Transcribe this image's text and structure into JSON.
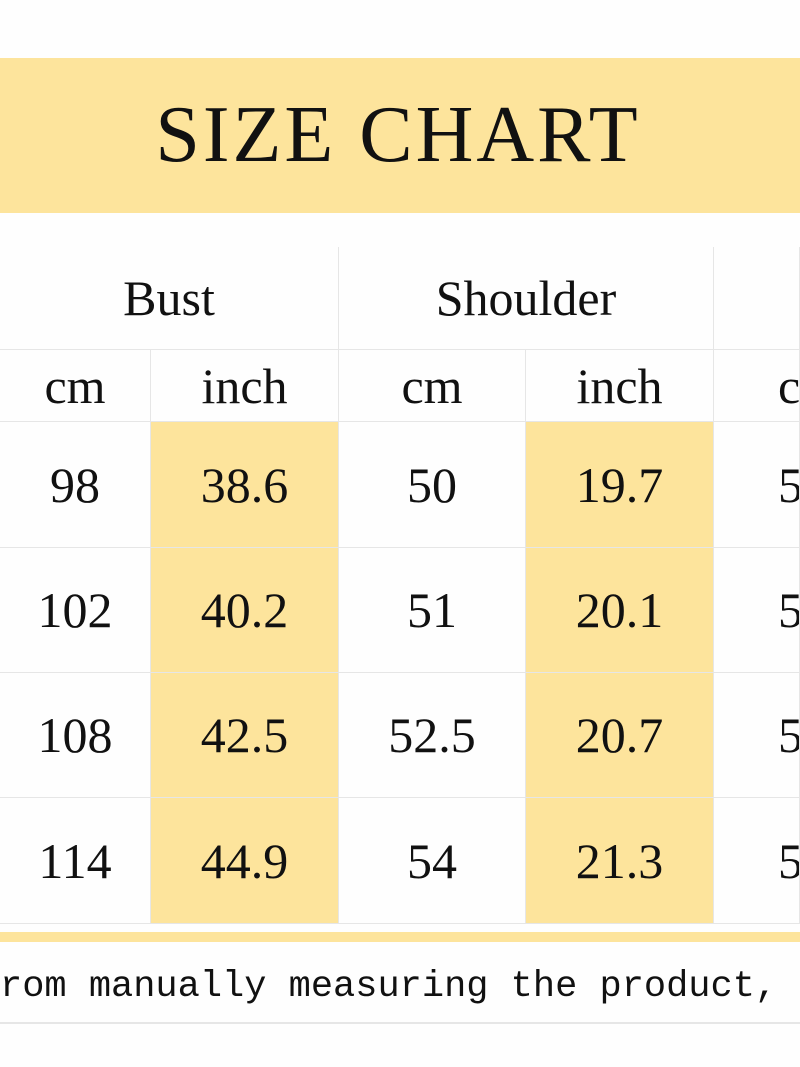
{
  "title": "SIZE CHART",
  "groups": [
    "Bust",
    "Shoulder",
    ""
  ],
  "units": [
    "cm",
    "inch",
    "cm",
    "inch",
    "c"
  ],
  "rows": [
    [
      "98",
      "38.6",
      "50",
      "19.7",
      "5"
    ],
    [
      "102",
      "40.2",
      "51",
      "20.1",
      "5"
    ],
    [
      "108",
      "42.5",
      "52.5",
      "20.7",
      "5"
    ],
    [
      "114",
      "44.9",
      "54",
      "21.3",
      "5"
    ]
  ],
  "footer": "rom manually measuring the product,",
  "colors": {
    "highlight": "#fde49c",
    "grid": "#e6e6e6"
  }
}
